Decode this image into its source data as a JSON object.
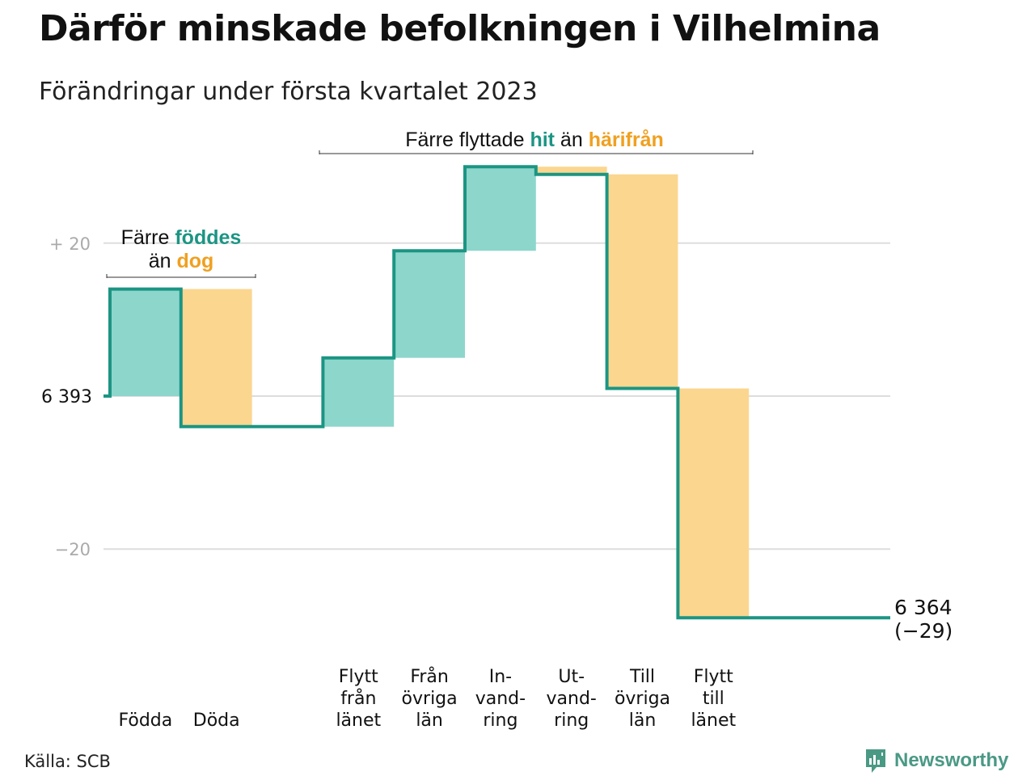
{
  "title": "Därför minskade befolkningen i Vilhelmina",
  "subtitle": "Förändringar under första kvartalet 2023",
  "source": "Källa: SCB",
  "brand": "Newsworthy",
  "annotations": {
    "births_deaths": {
      "line1_prefix": "Färre ",
      "line1_highlight": "föddes",
      "line2_prefix": "än ",
      "line2_highlight": "dog"
    },
    "migration": {
      "prefix": "Färre flyttade ",
      "highlight_in": "hit",
      "middle": " än ",
      "highlight_out": "härifrån"
    }
  },
  "end_label": {
    "value": "6 364",
    "change": "(−29)"
  },
  "colors": {
    "increase_fill": "#8dd6cc",
    "decrease_fill": "#fbd68f",
    "step_line": "#1c9583",
    "highlight_in_text": "#1c9583",
    "highlight_out_text": "#f0a020",
    "grid": "#dddddd",
    "tick_text": "#aaaaaa",
    "brand": "#4a9985"
  },
  "chart_data": {
    "type": "waterfall",
    "start_value": 6393,
    "start_label": "6 393",
    "end_value": 6364,
    "total_change": -29,
    "y_ticks": [
      {
        "value": 20,
        "label": "+ 20"
      },
      {
        "value": 0,
        "label": "6 393"
      },
      {
        "value": -20,
        "label": "−20"
      }
    ],
    "y_range_change": [
      -33,
      12
    ],
    "categories": [
      {
        "label_lines": [
          "Födda"
        ],
        "change": 14
      },
      {
        "label_lines": [
          "Döda"
        ],
        "change": -18
      },
      {
        "label_lines": [
          "Flytt",
          "från",
          "länet"
        ],
        "change": 9
      },
      {
        "label_lines": [
          "Från",
          "övriga",
          "län"
        ],
        "change": 14
      },
      {
        "label_lines": [
          "In-",
          "vand-",
          "ring"
        ],
        "change": 11
      },
      {
        "label_lines": [
          "Ut-",
          "vand-",
          "ring"
        ],
        "change": -1
      },
      {
        "label_lines": [
          "Till",
          "övriga",
          "län"
        ],
        "change": -28
      },
      {
        "label_lines": [
          "Flytt",
          "till",
          "länet"
        ],
        "change": -30
      }
    ],
    "slot_indices": [
      0,
      1,
      3,
      4,
      5,
      6,
      7,
      8
    ],
    "grid": true
  }
}
